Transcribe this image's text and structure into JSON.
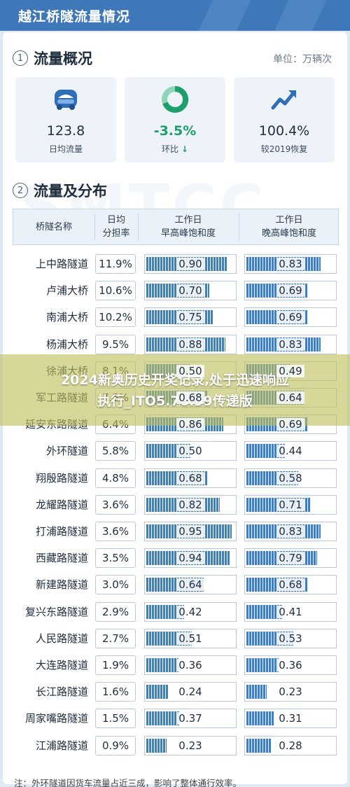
{
  "header": {
    "title": "越江桥隧流量情况"
  },
  "overview": {
    "number": "1",
    "title": "流量概况",
    "unit": "单位：万辆次",
    "kpis": [
      {
        "icon": "car-icon",
        "value": "123.8",
        "label": "日均流量"
      },
      {
        "icon": "ring-chart-icon",
        "value": "-3.5%",
        "label": "环比",
        "arrow": "↓"
      },
      {
        "icon": "trend-up-icon",
        "value": "100.4%",
        "label": "较2019恢复"
      }
    ]
  },
  "distribution": {
    "number": "2",
    "title": "流量及分布",
    "headers": {
      "name": "桥隧名称",
      "share_line1": "日均",
      "share_line2": "分担率",
      "am_line1": "工作日",
      "am_line2": "早高峰饱和度",
      "pm_line1": "工作日",
      "pm_line2": "晚高峰饱和度"
    }
  },
  "chart_data": {
    "type": "table",
    "columns": [
      "桥隧名称",
      "日均分担率",
      "工作日早高峰饱和度",
      "工作日晚高峰饱和度"
    ],
    "rows": [
      {
        "name": "上中路隧道",
        "share": "11.9%",
        "am": 0.9,
        "pm": 0.83
      },
      {
        "name": "卢浦大桥",
        "share": "10.6%",
        "am": 0.7,
        "pm": 0.69
      },
      {
        "name": "南浦大桥",
        "share": "10.2%",
        "am": 0.75,
        "pm": 0.69
      },
      {
        "name": "杨浦大桥",
        "share": "9.5%",
        "am": 0.88,
        "pm": 0.83
      },
      {
        "name": "徐浦大桥",
        "share": "8.1%",
        "am": 0.5,
        "pm": 0.49
      },
      {
        "name": "军工路隧道",
        "share": "7.5%",
        "am": 0.68,
        "pm": 0.64
      },
      {
        "name": "延安东路隧道",
        "share": "6.4%",
        "am": 0.86,
        "pm": 0.69
      },
      {
        "name": "外环隧道",
        "share": "5.8%",
        "am": 0.5,
        "pm": 0.44
      },
      {
        "name": "翔殷路隧道",
        "share": "4.8%",
        "am": 0.68,
        "pm": 0.58
      },
      {
        "name": "龙耀路隧道",
        "share": "3.6%",
        "am": 0.82,
        "pm": 0.71
      },
      {
        "name": "打浦路隧道",
        "share": "3.6%",
        "am": 0.95,
        "pm": 0.83
      },
      {
        "name": "西藏路隧道",
        "share": "3.5%",
        "am": 0.94,
        "pm": 0.79
      },
      {
        "name": "新建路隧道",
        "share": "3.0%",
        "am": 0.64,
        "pm": 0.68
      },
      {
        "name": "复兴东路隧道",
        "share": "2.9%",
        "am": 0.42,
        "pm": 0.41
      },
      {
        "name": "人民路隧道",
        "share": "2.7%",
        "am": 0.51,
        "pm": 0.53
      },
      {
        "name": "大连路隧道",
        "share": "1.9%",
        "am": 0.36,
        "pm": 0.36
      },
      {
        "name": "长江路隧道",
        "share": "1.6%",
        "am": 0.24,
        "pm": 0.23
      },
      {
        "name": "周家嘴路隧道",
        "share": "1.5%",
        "am": 0.37,
        "pm": 0.31
      },
      {
        "name": "江浦路隧道",
        "share": "0.9%",
        "am": 0.23,
        "pm": 0.28
      }
    ]
  },
  "watermark": "SMTCC",
  "overlay": {
    "line1": "2024新奥历史开奖记录,处于迅速响应",
    "line2": "执行_ITO5.76.99传递版"
  },
  "note": "注：外环隧道因货车流量占近三成，影响了整体通行效率。",
  "colors": {
    "banner": "#3f78b8",
    "bar": "#3b7fcb",
    "positive": "#1e9e6a"
  }
}
